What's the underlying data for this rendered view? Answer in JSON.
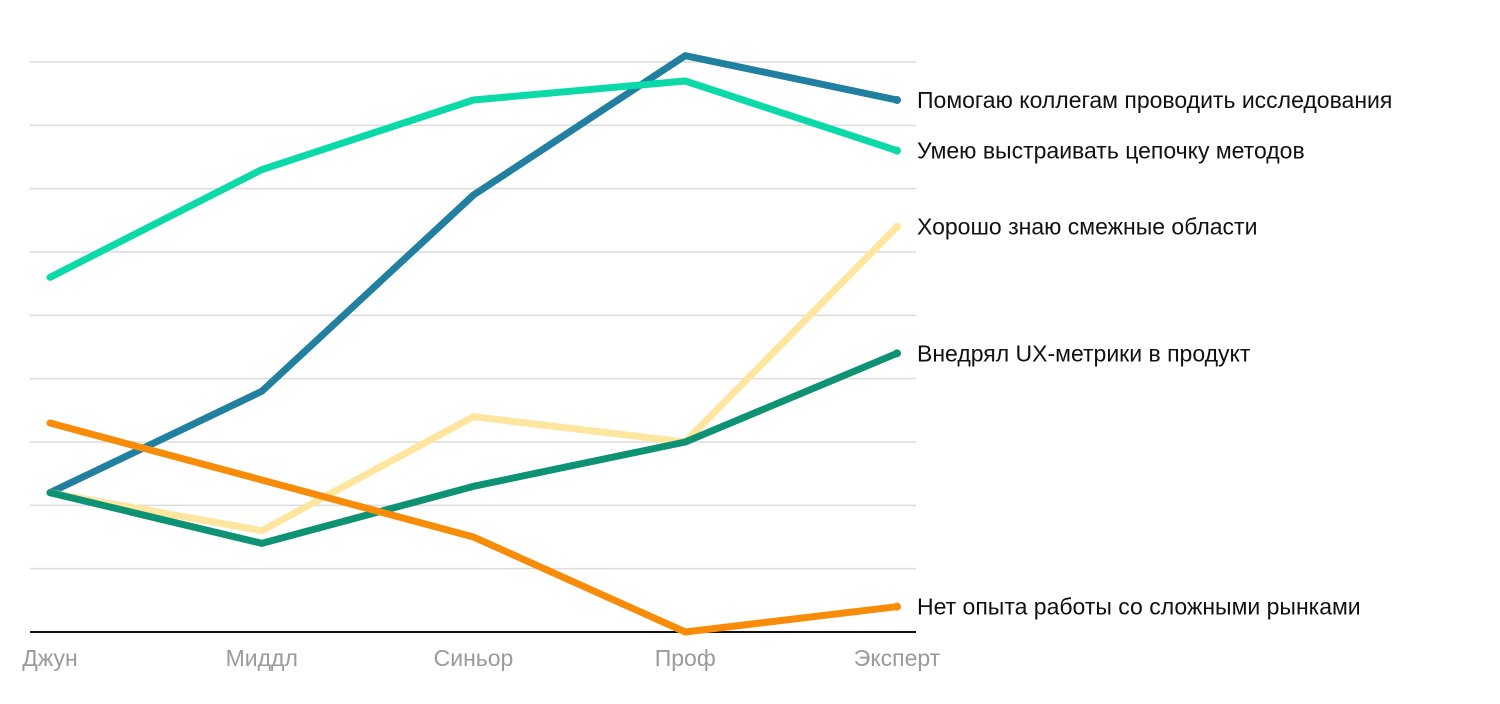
{
  "chart_data": {
    "type": "line",
    "title": "",
    "xlabel": "",
    "ylabel": "",
    "categories": [
      "Джун",
      "Миддл",
      "Синьор",
      "Проф",
      "Эксперт"
    ],
    "ylim": [
      0,
      9
    ],
    "grid": true,
    "y_ticks_shown": false,
    "legend": "inline-right",
    "series": [
      {
        "name": "Помогаю коллегам проводить исследования",
        "color": "#217fa0",
        "values": [
          2.2,
          3.8,
          6.9,
          9.1,
          8.4
        ]
      },
      {
        "name": "Умею выстраивать цепочку методов",
        "color": "#0ad9a8",
        "values": [
          5.6,
          7.3,
          8.4,
          8.7,
          7.6
        ]
      },
      {
        "name": "Хорошо знаю смежные области",
        "color": "#fee69e",
        "values": [
          2.2,
          1.6,
          3.4,
          3.0,
          6.4
        ]
      },
      {
        "name": "Внедрял UX-метрики в продукт",
        "color": "#0d9374",
        "values": [
          2.2,
          1.4,
          2.3,
          3.0,
          4.4
        ]
      },
      {
        "name": "Нет опыта работы со сложными рынками",
        "color": "#f88c09",
        "values": [
          3.3,
          2.4,
          1.5,
          0.0,
          0.4
        ]
      }
    ]
  }
}
